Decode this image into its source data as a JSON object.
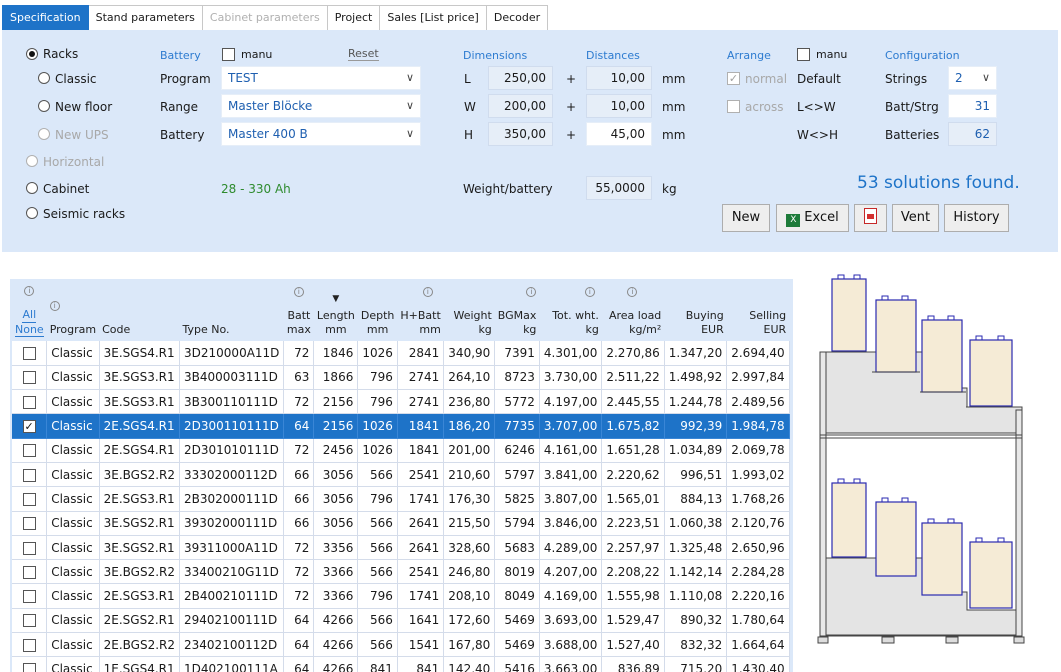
{
  "tabs": [
    {
      "label": "Specification",
      "state": "active"
    },
    {
      "label": "Stand parameters",
      "state": "normal"
    },
    {
      "label": "Cabinet parameters",
      "state": "disabled"
    },
    {
      "label": "Project",
      "state": "normal"
    },
    {
      "label": "Sales [List price]",
      "state": "normal"
    },
    {
      "label": "Decoder",
      "state": "normal"
    }
  ],
  "types": {
    "racks": "Racks",
    "classic": "Classic",
    "new_floor": "New floor",
    "new_ups": "New UPS",
    "horizontal": "Horizontal",
    "cabinet": "Cabinet",
    "seismic": "Seismic racks"
  },
  "battery": {
    "header": "Battery",
    "manu_label": "manu",
    "reset_label": "Reset",
    "program_label": "Program",
    "program_value": "TEST",
    "range_label": "Range",
    "range_value": "Master Blöcke",
    "battery_label": "Battery",
    "battery_value": "Master 400 B",
    "capacity_range": "28 - 330 Ah"
  },
  "dimensions": {
    "header": "Dimensions",
    "distances_header": "Distances",
    "l_label": "L",
    "l_value": "250,00",
    "l_dist": "10,00",
    "w_label": "W",
    "w_value": "200,00",
    "w_dist": "10,00",
    "h_label": "H",
    "h_value": "350,00",
    "h_dist": "45,00",
    "plus": "+",
    "unit": "mm",
    "weight_label": "Weight/battery",
    "weight_value": "55,0000",
    "weight_unit": "kg"
  },
  "arrange": {
    "header": "Arrange",
    "manu_label": "manu",
    "normal_label": "normal",
    "across_label": "across",
    "default_label": "Default",
    "lw_label": "L<>W",
    "wh_label": "W<>H"
  },
  "configuration": {
    "header": "Configuration",
    "strings_label": "Strings",
    "strings_value": "2",
    "batt_strg_label": "Batt/Strg",
    "batt_strg_value": "31",
    "batteries_label": "Batteries",
    "batteries_value": "62"
  },
  "solutions_text": "53 solutions found.",
  "buttons": {
    "new": "New",
    "excel": "Excel",
    "excel_icon": "X",
    "vent": "Vent",
    "history": "History"
  },
  "table": {
    "headers": {
      "all": "All",
      "none": "None",
      "program": "Program",
      "code": "Code",
      "type": "Type No.",
      "batt_max_1": "Batt",
      "batt_max_2": "max",
      "length_1": "Length",
      "length_2": "mm",
      "depth_1": "Depth",
      "depth_2": "mm",
      "hbatt_1": "H+Batt",
      "hbatt_2": "mm",
      "weight_1": "Weight",
      "weight_2": "kg",
      "bgmax_1": "BGMax",
      "bgmax_2": "kg",
      "tot_1": "Tot. wht.",
      "tot_2": "kg",
      "area_1": "Area load",
      "area_2": "kg/m²",
      "buying_1": "Buying",
      "buying_2": "EUR",
      "selling_1": "Selling",
      "selling_2": "EUR"
    },
    "rows": [
      {
        "checked": false,
        "program": "Classic",
        "code": "3E.SGS4.R1",
        "type": "3D210000A11D",
        "batt": "72",
        "length": "1846",
        "depth": "1026",
        "hbatt": "2841",
        "weight": "340,90",
        "bgmax": "7391",
        "tot": "4.301,00",
        "area": "2.270,86",
        "buying": "1.347,20",
        "selling": "2.694,40"
      },
      {
        "checked": false,
        "program": "Classic",
        "code": "3E.SGS3.R1",
        "type": "3B400003111D",
        "batt": "63",
        "length": "1866",
        "depth": "796",
        "hbatt": "2741",
        "weight": "264,10",
        "bgmax": "8723",
        "tot": "3.730,00",
        "area": "2.511,22",
        "buying": "1.498,92",
        "selling": "2.997,84"
      },
      {
        "checked": false,
        "program": "Classic",
        "code": "3E.SGS3.R1",
        "type": "3B300110111D",
        "batt": "72",
        "length": "2156",
        "depth": "796",
        "hbatt": "2741",
        "weight": "236,80",
        "bgmax": "5772",
        "tot": "4.197,00",
        "area": "2.445,55",
        "buying": "1.244,78",
        "selling": "2.489,56"
      },
      {
        "checked": true,
        "selected": true,
        "program": "Classic",
        "code": "2E.SGS4.R1",
        "type": "2D300110111D",
        "batt": "64",
        "length": "2156",
        "depth": "1026",
        "hbatt": "1841",
        "weight": "186,20",
        "bgmax": "7735",
        "tot": "3.707,00",
        "area": "1.675,82",
        "buying": "992,39",
        "selling": "1.984,78"
      },
      {
        "checked": false,
        "program": "Classic",
        "code": "2E.SGS4.R1",
        "type": "2D301010111D",
        "batt": "72",
        "length": "2456",
        "depth": "1026",
        "hbatt": "1841",
        "weight": "201,00",
        "bgmax": "6246",
        "tot": "4.161,00",
        "area": "1.651,28",
        "buying": "1.034,89",
        "selling": "2.069,78"
      },
      {
        "checked": false,
        "program": "Classic",
        "code": "3E.BGS2.R2",
        "type": "33302000112D",
        "batt": "66",
        "length": "3056",
        "depth": "566",
        "hbatt": "2541",
        "weight": "210,60",
        "bgmax": "5797",
        "tot": "3.841,00",
        "area": "2.220,62",
        "buying": "996,51",
        "selling": "1.993,02"
      },
      {
        "checked": false,
        "program": "Classic",
        "code": "2E.SGS3.R1",
        "type": "2B302000111D",
        "batt": "66",
        "length": "3056",
        "depth": "796",
        "hbatt": "1741",
        "weight": "176,30",
        "bgmax": "5825",
        "tot": "3.807,00",
        "area": "1.565,01",
        "buying": "884,13",
        "selling": "1.768,26"
      },
      {
        "checked": false,
        "program": "Classic",
        "code": "3E.SGS2.R1",
        "type": "39302000111D",
        "batt": "66",
        "length": "3056",
        "depth": "566",
        "hbatt": "2641",
        "weight": "215,50",
        "bgmax": "5794",
        "tot": "3.846,00",
        "area": "2.223,51",
        "buying": "1.060,38",
        "selling": "2.120,76"
      },
      {
        "checked": false,
        "program": "Classic",
        "code": "3E.SGS2.R1",
        "type": "39311000A11D",
        "batt": "72",
        "length": "3356",
        "depth": "566",
        "hbatt": "2641",
        "weight": "328,60",
        "bgmax": "5683",
        "tot": "4.289,00",
        "area": "2.257,97",
        "buying": "1.325,48",
        "selling": "2.650,96"
      },
      {
        "checked": false,
        "program": "Classic",
        "code": "3E.BGS2.R2",
        "type": "33400210G11D",
        "batt": "72",
        "length": "3366",
        "depth": "566",
        "hbatt": "2541",
        "weight": "246,80",
        "bgmax": "8019",
        "tot": "4.207,00",
        "area": "2.208,22",
        "buying": "1.142,14",
        "selling": "2.284,28"
      },
      {
        "checked": false,
        "program": "Classic",
        "code": "2E.SGS3.R1",
        "type": "2B400210111D",
        "batt": "72",
        "length": "3366",
        "depth": "796",
        "hbatt": "1741",
        "weight": "208,10",
        "bgmax": "8049",
        "tot": "4.169,00",
        "area": "1.555,98",
        "buying": "1.110,08",
        "selling": "2.220,16"
      },
      {
        "checked": false,
        "program": "Classic",
        "code": "2E.SGS2.R1",
        "type": "29402100111D",
        "batt": "64",
        "length": "4266",
        "depth": "566",
        "hbatt": "1641",
        "weight": "172,60",
        "bgmax": "5469",
        "tot": "3.693,00",
        "area": "1.529,47",
        "buying": "890,32",
        "selling": "1.780,64"
      },
      {
        "checked": false,
        "program": "Classic",
        "code": "2E.BGS2.R2",
        "type": "23402100112D",
        "batt": "64",
        "length": "4266",
        "depth": "566",
        "hbatt": "1541",
        "weight": "167,80",
        "bgmax": "5469",
        "tot": "3.688,00",
        "area": "1.527,40",
        "buying": "832,32",
        "selling": "1.664,64"
      },
      {
        "checked": false,
        "program": "Classic",
        "code": "1E.SGS4.R1",
        "type": "1D402100111A",
        "batt": "64",
        "length": "4266",
        "depth": "841",
        "hbatt": "841",
        "weight": "142,40",
        "bgmax": "5416",
        "tot": "3.663,00",
        "area": "836,89",
        "buying": "715,20",
        "selling": "1.430,40"
      }
    ]
  },
  "colors": {
    "accent": "#1e73c8",
    "panel": "#dbe8f9",
    "header_text": "#2d7bd0",
    "range_text": "#2e8b2e",
    "solutions_text": "#1e73c8"
  }
}
